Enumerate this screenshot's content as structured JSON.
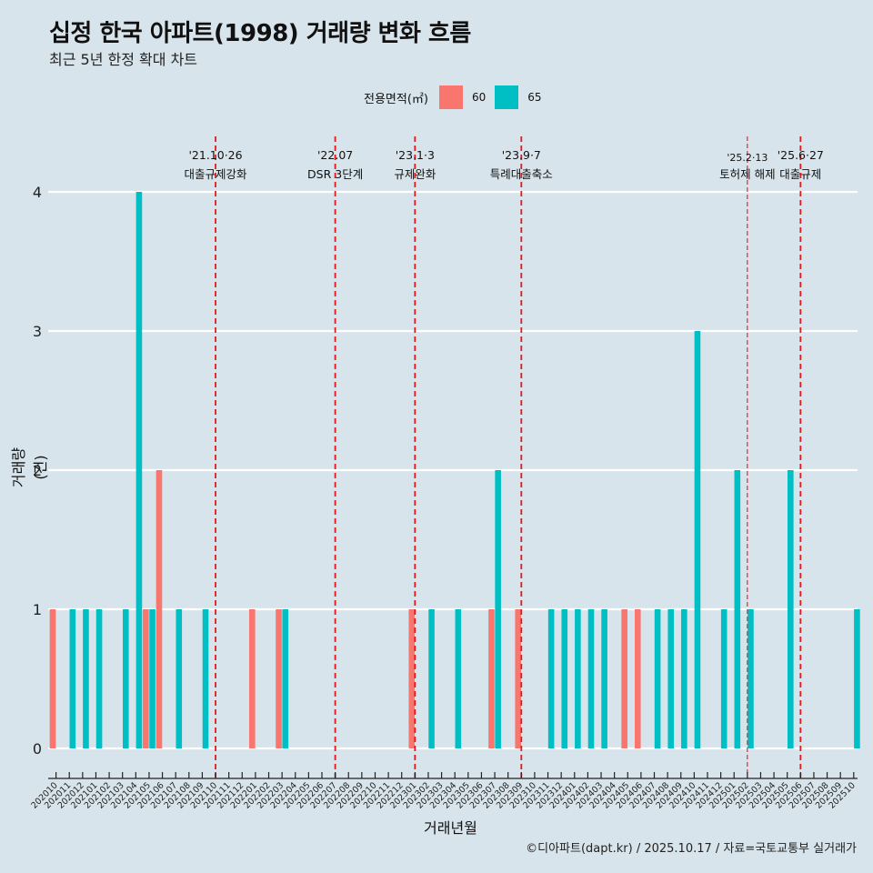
{
  "title": "십정 한국 아파트(1998) 거래량 변화 흐름",
  "subtitle": "최근 5년 한정 확대 차트",
  "caption": "©디아파트(dapt.kr) / 2025.10.17 / 자료=국토교통부 실거래가",
  "legend": {
    "title": "전용면적(㎡)",
    "items": [
      {
        "label": "60",
        "color": "#f8766d"
      },
      {
        "label": "65",
        "color": "#00bfc4"
      }
    ]
  },
  "chart_data": {
    "type": "bar",
    "title": "십정 한국 아파트(1998) 거래량 변화 흐름",
    "subtitle": "최근 5년 한정 확대 차트",
    "xlabel": "거래년월",
    "ylabel": "거래량(건)",
    "ylim": [
      0,
      4
    ],
    "yticks": [
      0,
      1,
      2,
      3,
      4
    ],
    "grid": "horizontal",
    "legend_position": "top",
    "categories": [
      "202010",
      "202011",
      "202012",
      "202101",
      "202102",
      "202103",
      "202104",
      "202105",
      "202106",
      "202107",
      "202108",
      "202109",
      "202110",
      "202111",
      "202112",
      "202201",
      "202202",
      "202203",
      "202204",
      "202205",
      "202206",
      "202207",
      "202208",
      "202209",
      "202210",
      "202211",
      "202212",
      "202301",
      "202302",
      "202303",
      "202304",
      "202305",
      "202306",
      "202307",
      "202308",
      "202309",
      "202310",
      "202311",
      "202312",
      "202401",
      "202402",
      "202403",
      "202404",
      "202405",
      "202406",
      "202407",
      "202408",
      "202409",
      "202410",
      "202411",
      "202412",
      "202501",
      "202502",
      "202503",
      "202504",
      "202505",
      "202506",
      "202507",
      "202508",
      "202509",
      "202510"
    ],
    "series": [
      {
        "name": "60",
        "color": "#f8766d",
        "values": {
          "202010": 1,
          "202105": 1,
          "202106": 2,
          "202201": 1,
          "202203": 1,
          "202301": 1,
          "202307": 1,
          "202309": 1,
          "202405": 1,
          "202406": 1
        }
      },
      {
        "name": "65",
        "color": "#00bfc4",
        "values": {
          "202011": 1,
          "202012": 1,
          "202101": 1,
          "202103": 1,
          "202104": 4,
          "202105": 1,
          "202107": 1,
          "202109": 1,
          "202203": 1,
          "202302": 1,
          "202304": 1,
          "202307": 2,
          "202311": 1,
          "202312": 1,
          "202401": 1,
          "202402": 1,
          "202403": 1,
          "202407": 1,
          "202408": 1,
          "202409": 1,
          "202410": 3,
          "202412": 1,
          "202501": 2,
          "202502": 1,
          "202505": 2,
          "202510": 1
        }
      }
    ],
    "annotations": [
      {
        "month": "202110",
        "date": "'21.10·26",
        "label": "대출규제강화",
        "style": "thick"
      },
      {
        "month": "202207",
        "date": "'22.07",
        "label": "DSR 3단계",
        "style": "thick"
      },
      {
        "month": "202301",
        "date": "'23.1·3",
        "label": "규제완화",
        "style": "thick"
      },
      {
        "month": "202309",
        "date": "'23.9·7",
        "label": "특례대출축소",
        "style": "thick"
      },
      {
        "month": "202502",
        "date": "'25.2·13",
        "label": "토허제 해제",
        "style": "thin"
      },
      {
        "month": "202506",
        "date": "'25.6·27",
        "label": "대출규제",
        "style": "thick"
      }
    ],
    "line_color": "#e31a1c"
  }
}
